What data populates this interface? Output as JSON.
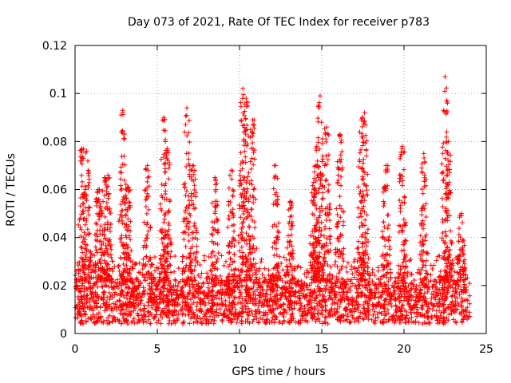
{
  "chart_data": {
    "type": "scatter",
    "title": "Day 073 of 2021, Rate Of TEC Index for receiver p783",
    "xlabel": "GPS time / hours",
    "ylabel": "ROTI / TECUs",
    "xlim": [
      0,
      25
    ],
    "ylim": [
      0,
      0.12
    ],
    "xticks": [
      0,
      5,
      10,
      15,
      20,
      25
    ],
    "xtick_labels": [
      "0",
      "5",
      "10",
      "15",
      "20",
      "25"
    ],
    "yticks": [
      0,
      0.02,
      0.04,
      0.06,
      0.08,
      0.1,
      0.12
    ],
    "ytick_labels": [
      "0",
      "0.02",
      "0.04",
      "0.06",
      "0.08",
      "0.1",
      "0.12"
    ],
    "grid": true,
    "marker": "+",
    "color": "#ff0000",
    "series": [
      {
        "name": "ROTI",
        "description": "Dense ROTI samples across the day; baseline ~0.005-0.02 TECU/s with recurring spikes",
        "x_range": [
          0,
          24
        ],
        "baseline_range": [
          0.004,
          0.022
        ],
        "peaks": [
          {
            "x": 0.4,
            "y": 0.077
          },
          {
            "x": 0.7,
            "y": 0.076
          },
          {
            "x": 1.4,
            "y": 0.06
          },
          {
            "x": 1.8,
            "y": 0.065
          },
          {
            "x": 2.0,
            "y": 0.066
          },
          {
            "x": 2.9,
            "y": 0.093
          },
          {
            "x": 3.2,
            "y": 0.061
          },
          {
            "x": 4.4,
            "y": 0.07
          },
          {
            "x": 5.4,
            "y": 0.09
          },
          {
            "x": 5.6,
            "y": 0.077
          },
          {
            "x": 6.8,
            "y": 0.094
          },
          {
            "x": 7.2,
            "y": 0.07
          },
          {
            "x": 8.5,
            "y": 0.065
          },
          {
            "x": 9.5,
            "y": 0.068
          },
          {
            "x": 10.2,
            "y": 0.102
          },
          {
            "x": 10.4,
            "y": 0.098
          },
          {
            "x": 10.8,
            "y": 0.089
          },
          {
            "x": 12.2,
            "y": 0.07
          },
          {
            "x": 13.1,
            "y": 0.055
          },
          {
            "x": 14.5,
            "y": 0.063
          },
          {
            "x": 14.7,
            "y": 0.078
          },
          {
            "x": 14.9,
            "y": 0.099
          },
          {
            "x": 15.3,
            "y": 0.086
          },
          {
            "x": 16.1,
            "y": 0.083
          },
          {
            "x": 17.4,
            "y": 0.089
          },
          {
            "x": 17.6,
            "y": 0.092
          },
          {
            "x": 18.9,
            "y": 0.07
          },
          {
            "x": 19.9,
            "y": 0.078
          },
          {
            "x": 21.2,
            "y": 0.075
          },
          {
            "x": 22.5,
            "y": 0.107
          },
          {
            "x": 22.7,
            "y": 0.08
          },
          {
            "x": 23.5,
            "y": 0.05
          }
        ]
      }
    ]
  }
}
